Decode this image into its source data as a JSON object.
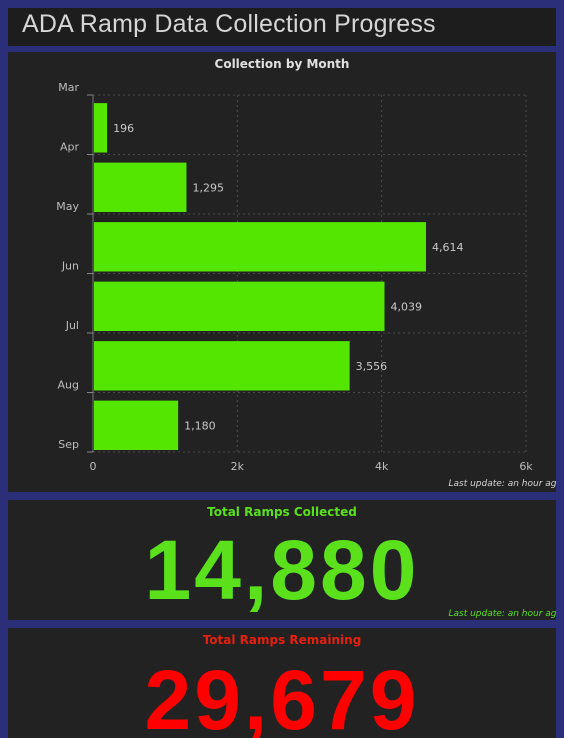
{
  "header": {
    "title": "ADA Ramp Data Collection Progress"
  },
  "colors": {
    "bar": "#55e600",
    "collected": "#5ae11c",
    "remaining": "#ff0000",
    "grid": "#4a4a4a",
    "axis_text": "#bdbdbd"
  },
  "chart_data": {
    "type": "bar",
    "orientation": "horizontal",
    "title": "Collection by Month",
    "y_tick_labels": [
      "Mar",
      "Apr",
      "May",
      "Jun",
      "Jul",
      "Aug",
      "Sep"
    ],
    "values": [
      196,
      1295,
      4614,
      4039,
      3556,
      1180
    ],
    "value_labels": [
      "196",
      "1,295",
      "4,614",
      "4,039",
      "3,556",
      "1,180"
    ],
    "xlim": [
      0,
      6000
    ],
    "x_ticks": [
      0,
      2000,
      4000,
      6000
    ],
    "x_tick_labels": [
      "0",
      "2k",
      "4k",
      "6k"
    ],
    "grid": true,
    "last_update": "Last update: an hour ago"
  },
  "collected": {
    "title": "Total Ramps Collected",
    "value": "14,880",
    "last_update": "Last update: an hour ago"
  },
  "remaining": {
    "title": "Total Ramps Remaining",
    "value": "29,679"
  }
}
